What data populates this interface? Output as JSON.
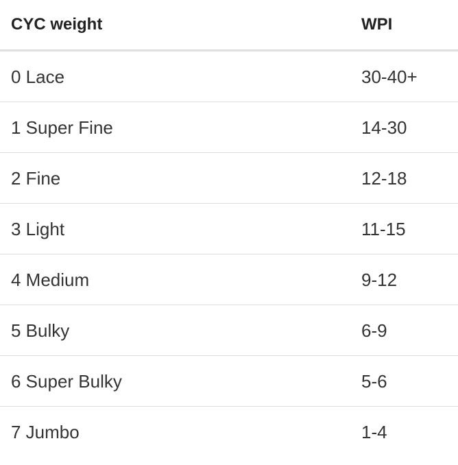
{
  "table": {
    "headers": [
      "CYC weight",
      "WPI"
    ],
    "rows": [
      [
        "0 Lace",
        "30-40+"
      ],
      [
        "1 Super Fine",
        "14-30"
      ],
      [
        "2 Fine",
        "12-18"
      ],
      [
        "3 Light",
        "11-15"
      ],
      [
        "4 Medium",
        "9-12"
      ],
      [
        "5 Bulky",
        "6-9"
      ],
      [
        "6 Super Bulky",
        "5-6"
      ],
      [
        "7 Jumbo",
        "1-4"
      ]
    ]
  }
}
